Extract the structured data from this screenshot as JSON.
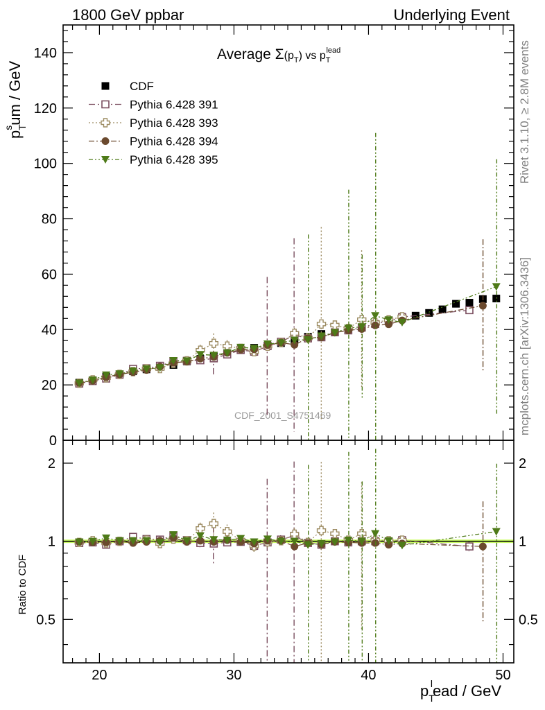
{
  "header": {
    "left": "1800 GeV ppbar",
    "right": "Underlying Event"
  },
  "side_labels": {
    "rivet": "Rivet 3.1.10, ≥ 2.8M events",
    "mcplots": "mcplots.cern.ch [arXiv:1306.3436]"
  },
  "watermark": "CDF_2001_S4751469",
  "chart_data": [
    {
      "type": "scatter",
      "title": "Average Σ(pT) vs pT lead",
      "title_parts": {
        "main": "Average ",
        "sigma": "Σ",
        "p": "p",
        "sub": "T",
        "vs": " vs ",
        "p2": "p",
        "sub2": "T",
        "sup2": "lead"
      },
      "xlabel": "pT lead / GeV",
      "xlabel_parts": {
        "p": "p",
        "sub": "T",
        "sup": "l",
        "rest": "ead / GeV"
      },
      "ylabel": "pT sum / GeV",
      "ylabel_parts": {
        "p": "p",
        "sub": "T",
        "sup": "s",
        "rest": "um / GeV"
      },
      "xlim": [
        17.3,
        50.8
      ],
      "ylim": [
        0,
        150
      ],
      "yticks": [
        0,
        20,
        40,
        60,
        80,
        100,
        120,
        140
      ],
      "xticks": [
        20,
        30,
        40,
        50
      ],
      "legend_position": "top-left",
      "grid": false,
      "series": [
        {
          "name": "CDF",
          "color": "#000000",
          "marker": "filled-square",
          "x": [
            18.5,
            19.5,
            20.5,
            21.5,
            22.5,
            23.5,
            24.5,
            25.5,
            26.5,
            27.5,
            28.5,
            29.5,
            30.5,
            31.5,
            32.5,
            33.5,
            34.5,
            35.5,
            36.5,
            37.5,
            38.5,
            39.5,
            40.5,
            41.5,
            42.5,
            43.5,
            44.5,
            45.5,
            46.5,
            47.5,
            48.5,
            49.5
          ],
          "y": [
            20.8,
            21.7,
            23.0,
            23.8,
            24.9,
            25.6,
            26.5,
            27.2,
            28.5,
            29.4,
            30.3,
            31.3,
            32.8,
            33.4,
            34.2,
            35.1,
            36.2,
            37.4,
            38.4,
            39.0,
            40.0,
            40.7,
            42.0,
            43.3,
            44.1,
            45.0,
            46.0,
            47.3,
            49.3,
            49.7,
            51.0,
            51.2
          ]
        },
        {
          "name": "Pythia 6.428 391",
          "color": "#7a4d5e",
          "marker": "open-square",
          "x": [
            18.5,
            19.5,
            20.5,
            21.5,
            22.5,
            23.5,
            24.5,
            25.5,
            26.5,
            27.5,
            28.5,
            29.5,
            30.5,
            31.5,
            32.5,
            33.5,
            34.5,
            35.5,
            36.5,
            37.5,
            38.5,
            39.5,
            40.5,
            41.5,
            42.5,
            47.5
          ],
          "y": [
            20.5,
            21.4,
            22.3,
            23.7,
            25.8,
            26.0,
            26.9,
            28.5,
            28.7,
            28.9,
            29.6,
            31.0,
            32.6,
            32.0,
            34.0,
            35.6,
            38.0,
            36.8,
            37.2,
            39.0,
            39.7,
            40.7,
            42.0,
            43.1,
            44.5,
            47.0
          ],
          "err": [
            0.8,
            0.8,
            0.8,
            0.8,
            0.8,
            0.8,
            0.8,
            0.8,
            0.8,
            1.2,
            6.0,
            0.8,
            0.8,
            1.2,
            25.0,
            1.2,
            35.0,
            1.2,
            1.2,
            0.8,
            0.8,
            1.0,
            1.0,
            0.8,
            0.8,
            1.5
          ]
        },
        {
          "name": "Pythia 6.428 393",
          "color": "#9c8b61",
          "marker": "open-cross",
          "x": [
            18.5,
            19.5,
            20.5,
            21.5,
            22.5,
            23.5,
            24.5,
            25.5,
            26.5,
            27.5,
            28.5,
            29.5,
            30.5,
            31.5,
            32.5,
            33.5,
            34.5,
            35.5,
            36.5,
            37.5,
            38.5,
            39.5,
            40.5,
            41.5,
            42.5
          ],
          "y": [
            20.6,
            21.8,
            22.6,
            23.8,
            24.8,
            25.8,
            25.9,
            27.8,
            28.7,
            32.5,
            35.0,
            34.0,
            33.2,
            32.0,
            34.0,
            35.3,
            38.6,
            37.0,
            42.0,
            41.6,
            40.4,
            43.6,
            42.5,
            43.5,
            44.6
          ],
          "err": [
            0.8,
            0.8,
            0.8,
            0.8,
            0.8,
            0.8,
            1.0,
            1.2,
            1.2,
            2.0,
            3.6,
            2.2,
            1.2,
            1.5,
            1.5,
            1.2,
            2.0,
            1.4,
            35.0,
            1.5,
            1.2,
            25.0,
            1.4,
            1.2,
            1.0
          ]
        },
        {
          "name": "Pythia 6.428 394",
          "color": "#6b4a2e",
          "marker": "filled-circle",
          "x": [
            18.5,
            19.5,
            20.5,
            21.5,
            22.5,
            23.5,
            24.5,
            25.5,
            26.5,
            27.5,
            28.5,
            29.5,
            30.5,
            31.5,
            32.5,
            33.5,
            34.5,
            35.5,
            36.5,
            37.5,
            38.5,
            39.5,
            40.5,
            41.5,
            42.5,
            48.5
          ],
          "y": [
            20.7,
            21.5,
            22.8,
            23.8,
            24.6,
            25.4,
            26.6,
            28.0,
            28.4,
            29.5,
            30.1,
            31.6,
            32.7,
            32.8,
            34.4,
            35.3,
            34.5,
            36.9,
            37.2,
            38.9,
            39.7,
            40.2,
            41.5,
            41.9,
            43.3,
            48.6
          ],
          "err": [
            0.6,
            0.6,
            0.6,
            0.6,
            0.6,
            0.6,
            0.6,
            0.8,
            0.8,
            0.8,
            0.8,
            0.8,
            0.8,
            0.8,
            0.8,
            0.8,
            0.8,
            0.8,
            0.8,
            0.8,
            0.8,
            0.8,
            0.8,
            0.8,
            0.8,
            24.0
          ]
        },
        {
          "name": "Pythia 6.428 395",
          "color": "#4e7a18",
          "marker": "filled-triangle-down",
          "x": [
            18.5,
            19.5,
            20.5,
            21.5,
            22.5,
            23.5,
            24.5,
            25.5,
            26.5,
            27.5,
            28.5,
            29.5,
            30.5,
            31.5,
            32.5,
            33.5,
            34.5,
            35.5,
            36.5,
            37.5,
            38.5,
            39.5,
            40.5,
            41.5,
            42.5,
            49.5
          ],
          "y": [
            20.7,
            21.8,
            23.6,
            24.0,
            25.0,
            25.8,
            26.2,
            28.8,
            28.7,
            31.0,
            30.7,
            31.6,
            33.6,
            33.2,
            34.8,
            35.2,
            36.2,
            36.3,
            37.7,
            38.9,
            40.5,
            41.0,
            45.0,
            43.5,
            42.6,
            55.5
          ],
          "err": [
            0.6,
            0.6,
            0.6,
            0.6,
            0.6,
            0.6,
            0.6,
            0.8,
            0.8,
            0.8,
            0.8,
            0.8,
            0.8,
            0.8,
            0.8,
            0.8,
            0.8,
            38.0,
            0.8,
            0.8,
            50.0,
            26.0,
            66.0,
            0.8,
            0.8,
            46.0
          ]
        }
      ]
    },
    {
      "type": "scatter",
      "ylabel": "Ratio to CDF",
      "xlim": [
        17.3,
        50.8
      ],
      "yscale": "log",
      "ylim": [
        0.34,
        2.45
      ],
      "yticks": [
        0.5,
        1,
        2
      ],
      "xticks": [
        20,
        30,
        40,
        50
      ],
      "reference_band": {
        "value": 1,
        "low": 0.985,
        "high": 1.015,
        "color": "#ccff66"
      },
      "series": [
        {
          "name": "Pythia 6.428 391",
          "color": "#7a4d5e",
          "marker": "open-square",
          "x": [
            18.5,
            19.5,
            20.5,
            21.5,
            22.5,
            23.5,
            24.5,
            25.5,
            26.5,
            27.5,
            28.5,
            29.5,
            30.5,
            31.5,
            32.5,
            33.5,
            34.5,
            35.5,
            36.5,
            37.5,
            38.5,
            39.5,
            40.5,
            41.5,
            42.5,
            47.5
          ],
          "y": [
            0.985,
            0.99,
            0.97,
            1.0,
            1.04,
            1.02,
            1.015,
            1.05,
            1.01,
            0.985,
            0.98,
            0.99,
            0.995,
            0.96,
            0.99,
            1.015,
            1.05,
            0.985,
            0.97,
            1.0,
            0.99,
            1.0,
            1.0,
            0.995,
            1.01,
            0.955
          ],
          "err": [
            0.03,
            0.03,
            0.03,
            0.03,
            0.03,
            0.03,
            0.03,
            0.03,
            0.03,
            0.04,
            0.16,
            0.03,
            0.03,
            0.04,
            0.75,
            0.04,
            0.98,
            0.04,
            0.04,
            0.03,
            0.03,
            0.03,
            0.03,
            0.03,
            0.03,
            0.04
          ]
        },
        {
          "name": "Pythia 6.428 393",
          "color": "#9c8b61",
          "marker": "open-cross",
          "x": [
            18.5,
            19.5,
            20.5,
            21.5,
            22.5,
            23.5,
            24.5,
            25.5,
            26.5,
            27.5,
            28.5,
            29.5,
            30.5,
            31.5,
            32.5,
            33.5,
            34.5,
            35.5,
            36.5,
            37.5,
            38.5,
            39.5,
            40.5,
            41.5,
            42.5
          ],
          "y": [
            0.99,
            1.005,
            0.985,
            1.0,
            0.995,
            1.01,
            0.98,
            1.02,
            1.005,
            1.12,
            1.17,
            1.09,
            1.01,
            0.96,
            0.995,
            1.005,
            1.065,
            0.99,
            1.1,
            1.07,
            1.01,
            1.07,
            1.01,
            1.005,
            1.01
          ],
          "err": [
            0.03,
            0.03,
            0.03,
            0.03,
            0.03,
            0.03,
            0.04,
            0.04,
            0.04,
            0.06,
            0.12,
            0.07,
            0.04,
            0.05,
            0.05,
            0.04,
            0.06,
            0.04,
            0.92,
            0.04,
            0.03,
            0.62,
            0.03,
            0.03,
            0.03
          ]
        },
        {
          "name": "Pythia 6.428 394",
          "color": "#6b4a2e",
          "marker": "filled-circle",
          "x": [
            18.5,
            19.5,
            20.5,
            21.5,
            22.5,
            23.5,
            24.5,
            25.5,
            26.5,
            27.5,
            28.5,
            29.5,
            30.5,
            31.5,
            32.5,
            33.5,
            34.5,
            35.5,
            36.5,
            37.5,
            38.5,
            39.5,
            40.5,
            41.5,
            42.5,
            48.5
          ],
          "y": [
            0.995,
            0.99,
            0.99,
            1.0,
            0.985,
            0.995,
            1.005,
            1.03,
            0.995,
            1.005,
            0.995,
            1.01,
            0.995,
            0.98,
            1.005,
            1.005,
            0.955,
            0.985,
            0.97,
            0.995,
            0.99,
            0.985,
            0.985,
            0.97,
            0.98,
            0.955
          ],
          "err": [
            0.02,
            0.02,
            0.02,
            0.02,
            0.02,
            0.02,
            0.02,
            0.02,
            0.02,
            0.02,
            0.02,
            0.02,
            0.02,
            0.02,
            0.02,
            0.02,
            0.02,
            0.02,
            0.02,
            0.02,
            0.02,
            0.02,
            0.02,
            0.02,
            0.02,
            0.47
          ]
        },
        {
          "name": "Pythia 6.428 395",
          "color": "#4e7a18",
          "marker": "filled-triangle-down",
          "x": [
            18.5,
            19.5,
            20.5,
            21.5,
            22.5,
            23.5,
            24.5,
            25.5,
            26.5,
            27.5,
            28.5,
            29.5,
            30.5,
            31.5,
            32.5,
            33.5,
            34.5,
            35.5,
            36.5,
            37.5,
            38.5,
            39.5,
            40.5,
            41.5,
            42.5,
            49.5
          ],
          "y": [
            0.995,
            1.0,
            1.03,
            1.005,
            1.005,
            1.005,
            0.99,
            1.06,
            1.005,
            1.05,
            1.015,
            1.01,
            1.025,
            0.995,
            1.02,
            1.0,
            1.0,
            0.97,
            0.98,
            0.995,
            1.01,
            1.0,
            1.07,
            1.005,
            0.965,
            1.09
          ],
          "err": [
            0.02,
            0.02,
            0.02,
            0.02,
            0.02,
            0.02,
            0.02,
            0.03,
            0.02,
            0.03,
            0.03,
            0.02,
            0.03,
            0.02,
            0.02,
            0.02,
            0.02,
            1.0,
            0.03,
            0.02,
            1.2,
            0.7,
            1.2,
            0.02,
            0.02,
            0.9
          ]
        }
      ]
    }
  ]
}
